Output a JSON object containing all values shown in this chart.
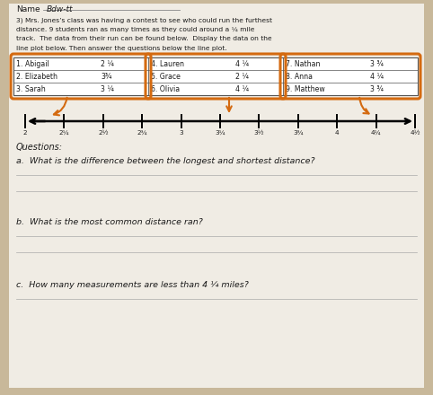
{
  "name_label": "Name",
  "name_written": "Bdw-tt",
  "title_lines": [
    "3) Mrs. Jones’s class was having a contest to see who could run the furthest",
    "distance. 9 students ran as many times as they could around a ¼ mile",
    "track.  The data from their run can be found below.  Display the data on the",
    "line plot below. Then answer the questions below the line plot."
  ],
  "table_rows": [
    [
      "1. Abigail",
      "2 ¼",
      "4. Lauren",
      "4 ¼",
      "7. Nathan",
      "3 ¾"
    ],
    [
      "2. Elizabeth",
      "3¾",
      "5. Grace",
      "2 ¼",
      "8. Anna",
      "4 ¼"
    ],
    [
      "3. Sarah",
      "3 ¼",
      "6. Olivia",
      "4 ¼",
      "9. Matthew",
      "3 ¾"
    ]
  ],
  "tick_values": [
    2.0,
    2.25,
    2.5,
    2.75,
    3.0,
    3.25,
    3.5,
    3.75,
    4.0,
    4.25,
    4.5
  ],
  "tick_labels": [
    "2",
    "2¼",
    "2½",
    "2¾",
    "3",
    "3¼",
    "3½",
    "3¾",
    "4",
    "4¼",
    "4½"
  ],
  "questions_header": "Questions:",
  "questions": [
    "a.  What is the difference between the longest and shortest distance?",
    "b.  What is the most common distance ran?",
    "c.  How many measurements are less than 4 ¼ miles?"
  ],
  "bg_color": "#c8b89a",
  "paper_color": "#f0ece4",
  "text_color": "#1a1a1a",
  "line_color": "#111111",
  "orange_color": "#d46a10",
  "table_border_color": "#555555",
  "rule_color": "#aaaaaa"
}
